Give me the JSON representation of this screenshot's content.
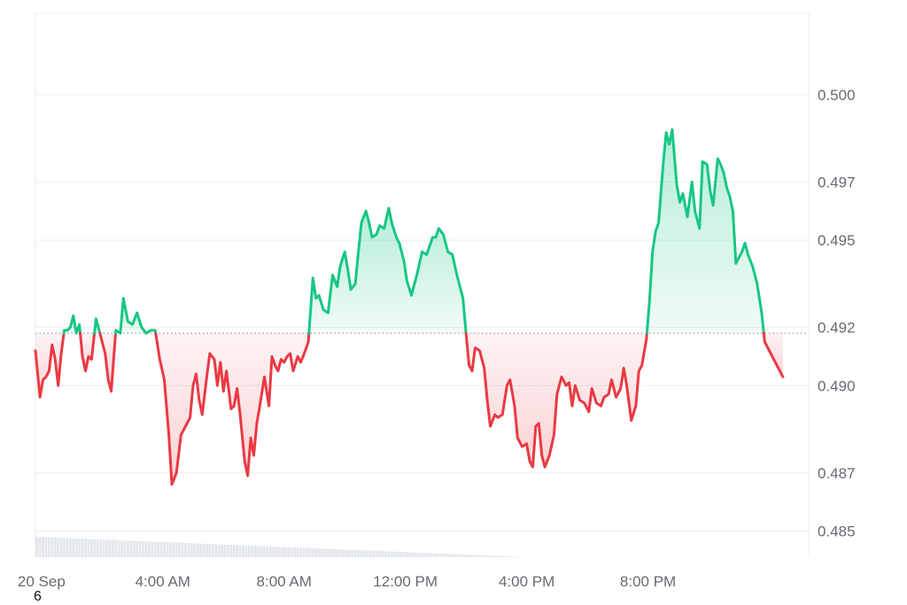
{
  "chart_data": {
    "type": "area",
    "title": "",
    "xlabel": "",
    "ylabel": "",
    "ylim": [
      0.4841,
      0.5028
    ],
    "baseline": 0.4918,
    "y_ticks": [
      {
        "value": 0.485,
        "label": "0.485"
      },
      {
        "value": 0.487,
        "label": "0.487"
      },
      {
        "value": 0.49,
        "label": "0.490"
      },
      {
        "value": 0.492,
        "label": "0.492"
      },
      {
        "value": 0.495,
        "label": "0.495"
      },
      {
        "value": 0.497,
        "label": "0.497"
      },
      {
        "value": 0.5,
        "label": "0.500"
      }
    ],
    "x_range_hours": [
      -0.2,
      25.3
    ],
    "x_ticks": [
      {
        "hour": 0,
        "label": "20 Sep"
      },
      {
        "hour": 4,
        "label": "4:00 AM"
      },
      {
        "hour": 8,
        "label": "8:00 AM"
      },
      {
        "hour": 12,
        "label": "12:00 PM"
      },
      {
        "hour": 16,
        "label": "4:00 PM"
      },
      {
        "hour": 20,
        "label": "8:00 PM"
      }
    ],
    "colors": {
      "up": "#16c784",
      "down": "#ea3943",
      "up_fill": "#16c784",
      "down_fill": "#ea3943",
      "grid": "#eeeeee",
      "volume": "#e3e7ec"
    },
    "series": [
      {
        "points": [
          [
            -0.2,
            0.4912
          ],
          [
            -0.05,
            0.4896
          ],
          [
            0.05,
            0.4902
          ],
          [
            0.15,
            0.4903
          ],
          [
            0.25,
            0.4905
          ],
          [
            0.35,
            0.4914
          ],
          [
            0.45,
            0.4909
          ],
          [
            0.55,
            0.49
          ],
          [
            0.65,
            0.4911
          ],
          [
            0.75,
            0.4919
          ],
          [
            0.85,
            0.4919
          ],
          [
            0.95,
            0.492
          ],
          [
            1.05,
            0.4924
          ],
          [
            1.15,
            0.4918
          ],
          [
            1.25,
            0.4921
          ],
          [
            1.35,
            0.491
          ],
          [
            1.45,
            0.4905
          ],
          [
            1.55,
            0.491
          ],
          [
            1.65,
            0.4909
          ],
          [
            1.8,
            0.4923
          ],
          [
            1.95,
            0.4917
          ],
          [
            2.1,
            0.4911
          ],
          [
            2.2,
            0.4902
          ],
          [
            2.3,
            0.4898
          ],
          [
            2.45,
            0.4919
          ],
          [
            2.6,
            0.4918
          ],
          [
            2.7,
            0.493
          ],
          [
            2.85,
            0.4922
          ],
          [
            3.0,
            0.4921
          ],
          [
            3.15,
            0.4925
          ],
          [
            3.3,
            0.492
          ],
          [
            3.45,
            0.4918
          ],
          [
            3.6,
            0.4919
          ],
          [
            3.75,
            0.4919
          ],
          [
            3.9,
            0.4909
          ],
          [
            4.05,
            0.4902
          ],
          [
            4.2,
            0.4883
          ],
          [
            4.3,
            0.4866
          ],
          [
            4.45,
            0.487
          ],
          [
            4.6,
            0.4883
          ],
          [
            4.75,
            0.4886
          ],
          [
            4.9,
            0.4889
          ],
          [
            5.0,
            0.49
          ],
          [
            5.1,
            0.4904
          ],
          [
            5.2,
            0.4895
          ],
          [
            5.3,
            0.489
          ],
          [
            5.45,
            0.4903
          ],
          [
            5.55,
            0.4911
          ],
          [
            5.7,
            0.4909
          ],
          [
            5.8,
            0.49
          ],
          [
            5.9,
            0.4908
          ],
          [
            6.0,
            0.4898
          ],
          [
            6.1,
            0.4905
          ],
          [
            6.25,
            0.4892
          ],
          [
            6.35,
            0.4893
          ],
          [
            6.45,
            0.4899
          ],
          [
            6.55,
            0.489
          ],
          [
            6.7,
            0.4874
          ],
          [
            6.8,
            0.4869
          ],
          [
            6.9,
            0.4882
          ],
          [
            7.0,
            0.4876
          ],
          [
            7.1,
            0.4887
          ],
          [
            7.2,
            0.4893
          ],
          [
            7.35,
            0.4903
          ],
          [
            7.5,
            0.4893
          ],
          [
            7.6,
            0.491
          ],
          [
            7.7,
            0.4907
          ],
          [
            7.8,
            0.4905
          ],
          [
            7.9,
            0.4909
          ],
          [
            8.0,
            0.4908
          ],
          [
            8.1,
            0.491
          ],
          [
            8.2,
            0.4911
          ],
          [
            8.3,
            0.4905
          ],
          [
            8.45,
            0.491
          ],
          [
            8.55,
            0.4908
          ],
          [
            8.7,
            0.4912
          ],
          [
            8.8,
            0.4915
          ],
          [
            8.95,
            0.4937
          ],
          [
            9.05,
            0.493
          ],
          [
            9.15,
            0.4931
          ],
          [
            9.3,
            0.4926
          ],
          [
            9.45,
            0.4925
          ],
          [
            9.6,
            0.4938
          ],
          [
            9.75,
            0.4934
          ],
          [
            9.85,
            0.4941
          ],
          [
            10.0,
            0.4946
          ],
          [
            10.1,
            0.494
          ],
          [
            10.2,
            0.4933
          ],
          [
            10.35,
            0.4935
          ],
          [
            10.45,
            0.4946
          ],
          [
            10.55,
            0.4956
          ],
          [
            10.7,
            0.496
          ],
          [
            10.8,
            0.4956
          ],
          [
            10.9,
            0.4951
          ],
          [
            11.05,
            0.4952
          ],
          [
            11.15,
            0.4955
          ],
          [
            11.3,
            0.4954
          ],
          [
            11.45,
            0.4961
          ],
          [
            11.55,
            0.4956
          ],
          [
            11.7,
            0.4951
          ],
          [
            11.8,
            0.4949
          ],
          [
            11.95,
            0.4943
          ],
          [
            12.05,
            0.4936
          ],
          [
            12.2,
            0.4931
          ],
          [
            12.4,
            0.4939
          ],
          [
            12.55,
            0.4946
          ],
          [
            12.7,
            0.4945
          ],
          [
            12.8,
            0.4948
          ],
          [
            12.9,
            0.4951
          ],
          [
            13.0,
            0.4951
          ],
          [
            13.1,
            0.4954
          ],
          [
            13.25,
            0.4952
          ],
          [
            13.4,
            0.4946
          ],
          [
            13.55,
            0.4945
          ],
          [
            13.7,
            0.4938
          ],
          [
            13.9,
            0.493
          ],
          [
            14.0,
            0.4918
          ],
          [
            14.1,
            0.4907
          ],
          [
            14.2,
            0.4905
          ],
          [
            14.3,
            0.4913
          ],
          [
            14.45,
            0.4912
          ],
          [
            14.6,
            0.4906
          ],
          [
            14.7,
            0.4895
          ],
          [
            14.8,
            0.4886
          ],
          [
            14.95,
            0.489
          ],
          [
            15.05,
            0.4889
          ],
          [
            15.2,
            0.489
          ],
          [
            15.35,
            0.49
          ],
          [
            15.45,
            0.4902
          ],
          [
            15.6,
            0.4893
          ],
          [
            15.7,
            0.4882
          ],
          [
            15.85,
            0.4879
          ],
          [
            16.0,
            0.488
          ],
          [
            16.1,
            0.4874
          ],
          [
            16.2,
            0.4872
          ],
          [
            16.3,
            0.4886
          ],
          [
            16.4,
            0.4887
          ],
          [
            16.5,
            0.4876
          ],
          [
            16.6,
            0.4872
          ],
          [
            16.75,
            0.4876
          ],
          [
            16.9,
            0.4883
          ],
          [
            17.0,
            0.4897
          ],
          [
            17.15,
            0.4903
          ],
          [
            17.3,
            0.49
          ],
          [
            17.4,
            0.4901
          ],
          [
            17.5,
            0.4893
          ],
          [
            17.6,
            0.49
          ],
          [
            17.75,
            0.4895
          ],
          [
            17.9,
            0.4894
          ],
          [
            18.05,
            0.4891
          ],
          [
            18.15,
            0.4899
          ],
          [
            18.3,
            0.4894
          ],
          [
            18.45,
            0.4893
          ],
          [
            18.55,
            0.4896
          ],
          [
            18.7,
            0.4897
          ],
          [
            18.8,
            0.4902
          ],
          [
            18.95,
            0.4896
          ],
          [
            19.1,
            0.4899
          ],
          [
            19.2,
            0.4906
          ],
          [
            19.3,
            0.49
          ],
          [
            19.45,
            0.4888
          ],
          [
            19.6,
            0.4893
          ],
          [
            19.7,
            0.4905
          ],
          [
            19.8,
            0.4907
          ],
          [
            19.95,
            0.4916
          ],
          [
            20.05,
            0.4929
          ],
          [
            20.15,
            0.4946
          ],
          [
            20.25,
            0.4953
          ],
          [
            20.35,
            0.4956
          ],
          [
            20.5,
            0.4976
          ],
          [
            20.6,
            0.4987
          ],
          [
            20.7,
            0.4983
          ],
          [
            20.8,
            0.4988
          ],
          [
            20.95,
            0.4969
          ],
          [
            21.05,
            0.4963
          ],
          [
            21.15,
            0.4966
          ],
          [
            21.3,
            0.4958
          ],
          [
            21.45,
            0.497
          ],
          [
            21.55,
            0.496
          ],
          [
            21.7,
            0.4954
          ],
          [
            21.8,
            0.4977
          ],
          [
            21.95,
            0.4976
          ],
          [
            22.05,
            0.4967
          ],
          [
            22.15,
            0.4962
          ],
          [
            22.3,
            0.4978
          ],
          [
            22.4,
            0.4976
          ],
          [
            22.5,
            0.4973
          ],
          [
            22.6,
            0.4968
          ],
          [
            22.7,
            0.4965
          ],
          [
            22.8,
            0.496
          ],
          [
            22.9,
            0.4942
          ],
          [
            23.0,
            0.4944
          ],
          [
            23.1,
            0.4946
          ],
          [
            23.2,
            0.4949
          ],
          [
            23.3,
            0.4945
          ],
          [
            23.45,
            0.4941
          ],
          [
            23.6,
            0.4935
          ],
          [
            23.75,
            0.4925
          ],
          [
            23.85,
            0.4915
          ],
          [
            24.0,
            0.4912
          ],
          [
            24.2,
            0.4908
          ],
          [
            24.45,
            0.4903
          ]
        ]
      }
    ],
    "volume": {
      "x_start": -0.2,
      "x_step": 0.1,
      "first": 0.4848,
      "last": 0.4837,
      "top_last_bar": 0.4837,
      "gap_x": [
        24.6,
        24.75
      ],
      "bottom": 0.4841
    }
  },
  "footer": {
    "corner_text": "6"
  }
}
